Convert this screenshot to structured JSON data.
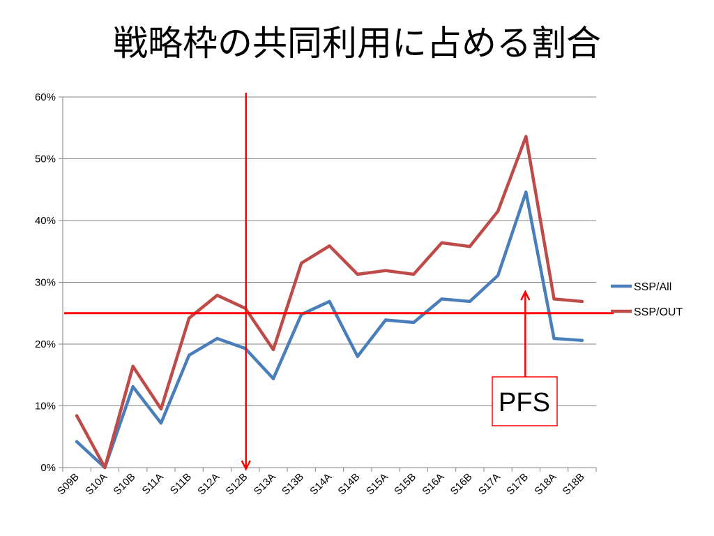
{
  "title": "戦略枠の共同利用に占める割合",
  "chart_data": {
    "type": "line",
    "title": "戦略枠の共同利用に占める割合",
    "xlabel": "",
    "ylabel": "",
    "categories": [
      "S09B",
      "S10A",
      "S10B",
      "S11A",
      "S11B",
      "S12A",
      "S12B",
      "S13A",
      "S13B",
      "S14A",
      "S14B",
      "S15A",
      "S15B",
      "S16A",
      "S16B",
      "S17A",
      "S17B",
      "S18A",
      "S18B"
    ],
    "y_ticks": [
      "0%",
      "10%",
      "20%",
      "30%",
      "40%",
      "50%",
      "60%"
    ],
    "ylim": [
      0,
      60
    ],
    "grid": true,
    "legend_position": "right",
    "series": [
      {
        "name": "SSP/All",
        "color": "#4a7ebb",
        "values": [
          4.2,
          0,
          13.1,
          7.2,
          18.2,
          20.9,
          19.3,
          14.4,
          24.8,
          26.9,
          18.0,
          23.9,
          23.5,
          27.3,
          26.9,
          31.1,
          44.6,
          20.9,
          20.6
        ]
      },
      {
        "name": "SSP/OUT",
        "color": "#be4b48",
        "values": [
          8.4,
          0,
          16.4,
          9.5,
          24.2,
          27.9,
          25.8,
          19.1,
          33.1,
          35.9,
          31.3,
          31.9,
          31.3,
          36.4,
          35.8,
          41.5,
          53.6,
          27.3,
          26.9
        ]
      }
    ],
    "annotations": {
      "threshold_value": 25,
      "vertical_marker_category": "S12B",
      "arrow_target_category": "S17B",
      "label": "PFS",
      "color": "#ff0000"
    }
  }
}
